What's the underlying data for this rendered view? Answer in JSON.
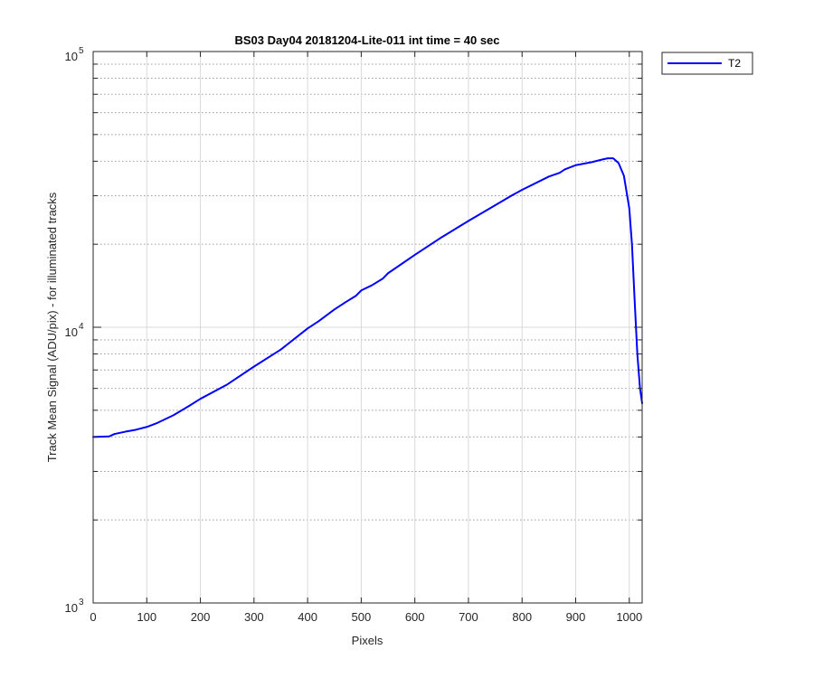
{
  "chart_data": {
    "type": "line",
    "title": "BS03 Day04 20181204-Lite-011 int time = 40 sec",
    "xlabel": "Pixels",
    "ylabel": "Track Mean Signal (ADU/pix) - for illuminated tracks",
    "xlim": [
      0,
      1024
    ],
    "ylim": [
      1000,
      100000
    ],
    "yscale": "log",
    "grid": true,
    "legend_location": "outside-top-right",
    "x_ticks": [
      "0",
      "100",
      "200",
      "300",
      "400",
      "500",
      "600",
      "700",
      "800",
      "900",
      "1000"
    ],
    "y_ticks": [
      {
        "base": "10",
        "exp": "3"
      },
      {
        "base": "10",
        "exp": "4"
      },
      {
        "base": "10",
        "exp": "5"
      }
    ],
    "series": [
      {
        "name": "T2",
        "color": "#0000ff",
        "x": [
          0,
          30,
          40,
          60,
          80,
          100,
          120,
          150,
          180,
          200,
          250,
          300,
          350,
          400,
          420,
          450,
          470,
          490,
          500,
          520,
          540,
          550,
          600,
          650,
          700,
          750,
          780,
          800,
          850,
          870,
          880,
          900,
          930,
          950,
          960,
          970,
          980,
          990,
          1000,
          1005,
          1010,
          1015,
          1020,
          1024
        ],
        "y": [
          4000,
          4020,
          4100,
          4180,
          4250,
          4350,
          4500,
          4800,
          5200,
          5500,
          6200,
          7200,
          8300,
          9900,
          10500,
          11600,
          12300,
          13000,
          13600,
          14200,
          15000,
          15700,
          18300,
          21200,
          24300,
          27700,
          30000,
          31500,
          35200,
          36300,
          37400,
          38700,
          39700,
          40600,
          41000,
          41000,
          39400,
          35400,
          27000,
          20000,
          12500,
          8000,
          6000,
          5300
        ]
      }
    ]
  }
}
